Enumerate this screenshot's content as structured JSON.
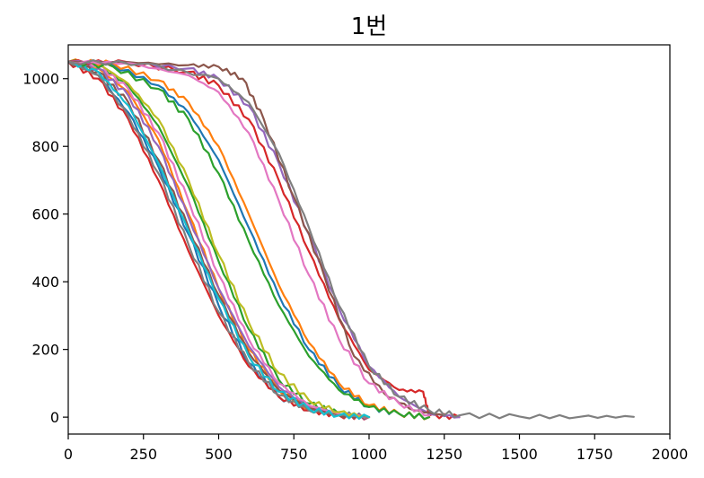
{
  "chart_data": {
    "type": "line",
    "title": "1번",
    "xlabel": "",
    "ylabel": "",
    "xlim": [
      0,
      2000
    ],
    "ylim": [
      -50,
      1100
    ],
    "xticks": [
      0,
      250,
      500,
      750,
      1000,
      1250,
      1500,
      1750,
      2000
    ],
    "yticks": [
      0,
      200,
      400,
      600,
      800,
      1000
    ],
    "grid": false,
    "legend": "none",
    "colors": [
      "#1f77b4",
      "#ff7f0e",
      "#2ca02c",
      "#d62728",
      "#9467bd",
      "#8c564b",
      "#e377c2",
      "#7f7f7f",
      "#bcbd22",
      "#17becf"
    ],
    "series": [
      {
        "x": [
          0,
          100,
          200,
          300,
          400,
          500,
          600,
          700,
          800,
          900,
          1000
        ],
        "y": [
          1050,
          1010,
          900,
          740,
          540,
          330,
          160,
          60,
          20,
          5,
          0
        ]
      },
      {
        "x": [
          0,
          100,
          200,
          300,
          400,
          500,
          600,
          700,
          800,
          900,
          1000
        ],
        "y": [
          1050,
          1030,
          960,
          820,
          600,
          380,
          200,
          80,
          25,
          8,
          0
        ]
      },
      {
        "x": [
          0,
          100,
          200,
          300,
          400,
          500,
          600,
          700,
          800,
          900,
          1000
        ],
        "y": [
          1050,
          1040,
          980,
          860,
          680,
          460,
          260,
          110,
          40,
          10,
          0
        ]
      },
      {
        "x": [
          0,
          100,
          200,
          300,
          400,
          500,
          600,
          700,
          800,
          900,
          1000
        ],
        "y": [
          1050,
          1000,
          880,
          700,
          490,
          300,
          150,
          60,
          20,
          5,
          0
        ]
      },
      {
        "x": [
          0,
          100,
          200,
          300,
          400,
          500,
          600,
          700,
          800,
          900,
          1000
        ],
        "y": [
          1050,
          1030,
          950,
          800,
          590,
          380,
          210,
          90,
          30,
          8,
          0
        ]
      },
      {
        "x": [
          0,
          100,
          200,
          300,
          400,
          500,
          600,
          700,
          800,
          900,
          1000
        ],
        "y": [
          1050,
          1020,
          930,
          760,
          560,
          360,
          190,
          80,
          25,
          5,
          0
        ]
      },
      {
        "x": [
          0,
          100,
          200,
          300,
          400,
          500,
          600,
          700,
          800,
          900,
          1000
        ],
        "y": [
          1050,
          1040,
          970,
          840,
          640,
          420,
          230,
          100,
          35,
          10,
          0
        ]
      },
      {
        "x": [
          0,
          100,
          200,
          300,
          400,
          500,
          600,
          700,
          800,
          900,
          1000
        ],
        "y": [
          1050,
          1010,
          890,
          720,
          510,
          310,
          160,
          65,
          20,
          5,
          0
        ]
      },
      {
        "x": [
          0,
          100,
          200,
          300,
          400,
          500,
          600,
          700,
          800,
          900,
          1000
        ],
        "y": [
          1050,
          1045,
          985,
          880,
          700,
          480,
          280,
          130,
          50,
          15,
          0
        ]
      },
      {
        "x": [
          0,
          100,
          200,
          300,
          400,
          500,
          600,
          700,
          800,
          900,
          1000
        ],
        "y": [
          1050,
          1020,
          920,
          750,
          550,
          350,
          180,
          75,
          25,
          5,
          0
        ]
      },
      {
        "x": [
          0,
          150,
          300,
          400,
          500,
          600,
          700,
          800,
          900,
          1000,
          1100,
          1200
        ],
        "y": [
          1050,
          1040,
          980,
          900,
          760,
          560,
          360,
          200,
          90,
          30,
          10,
          0
        ]
      },
      {
        "x": [
          0,
          150,
          300,
          400,
          500,
          600,
          700,
          800,
          900,
          1000,
          1100,
          1200
        ],
        "y": [
          1050,
          1045,
          995,
          930,
          800,
          600,
          390,
          220,
          100,
          35,
          10,
          0
        ]
      },
      {
        "x": [
          0,
          150,
          300,
          400,
          500,
          600,
          700,
          800,
          900,
          1000,
          1100,
          1200
        ],
        "y": [
          1050,
          1035,
          970,
          880,
          720,
          520,
          330,
          180,
          80,
          30,
          10,
          0
        ]
      },
      {
        "x": [
          0,
          200,
          400,
          500,
          600,
          700,
          800,
          900,
          1000,
          1100,
          1180,
          1200,
          1300
        ],
        "y": [
          1050,
          1048,
          1020,
          980,
          880,
          700,
          490,
          290,
          140,
          80,
          75,
          5,
          0
        ]
      },
      {
        "x": [
          0,
          200,
          400,
          500,
          600,
          700,
          800,
          900,
          1000,
          1100,
          1200,
          1300
        ],
        "y": [
          1050,
          1048,
          1030,
          1000,
          920,
          750,
          540,
          320,
          150,
          60,
          10,
          0
        ]
      },
      {
        "x": [
          0,
          200,
          400,
          500,
          580,
          650,
          750,
          850,
          950,
          1050,
          1150,
          1250
        ],
        "y": [
          1050,
          1049,
          1040,
          1035,
          1000,
          880,
          650,
          420,
          180,
          70,
          20,
          5
        ]
      },
      {
        "x": [
          0,
          200,
          400,
          500,
          600,
          700,
          800,
          900,
          1000,
          1100,
          1200
        ],
        "y": [
          1050,
          1046,
          1010,
          960,
          840,
          640,
          420,
          230,
          100,
          40,
          5
        ]
      },
      {
        "x": [
          0,
          250,
          500,
          600,
          700,
          800,
          900,
          1000,
          1100,
          1200,
          1300,
          1500,
          1700,
          1880
        ],
        "y": [
          1050,
          1045,
          1000,
          930,
          780,
          560,
          330,
          150,
          60,
          20,
          5,
          2,
          1,
          1
        ]
      }
    ]
  }
}
